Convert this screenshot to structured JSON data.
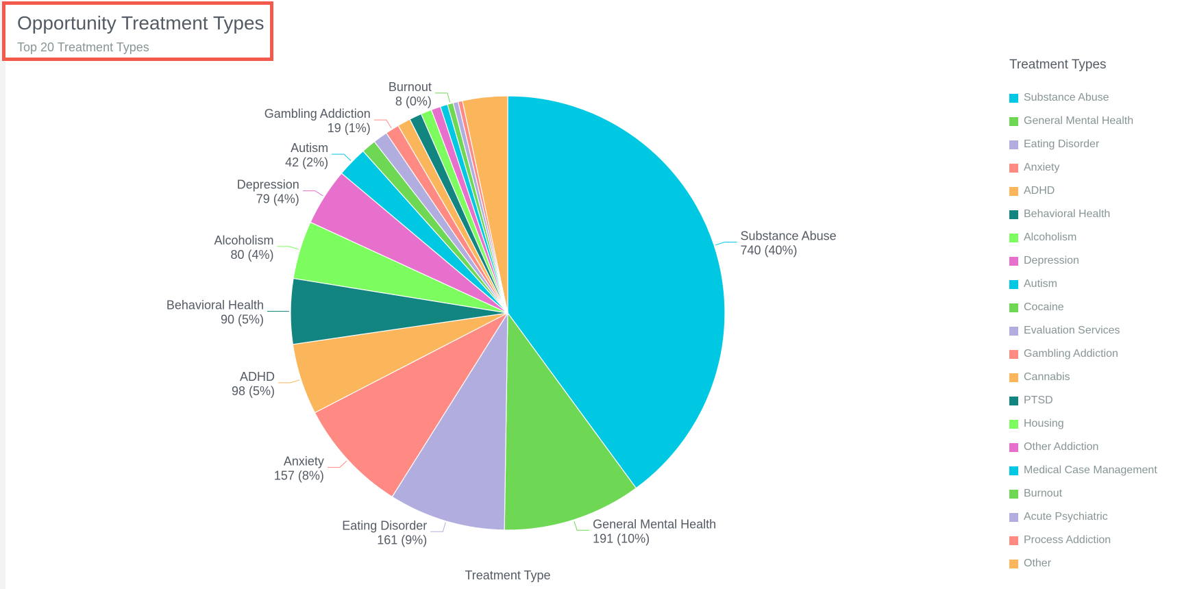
{
  "header": {
    "title": "Opportunity Treatment Types",
    "subtitle": "Top 20 Treatment Types"
  },
  "legend": {
    "title": "Treatment Types"
  },
  "chart_data": {
    "type": "pie",
    "title": "Opportunity Treatment Types",
    "subtitle": "Top 20 Treatment Types",
    "xlabel": "Treatment Type",
    "legend_title": "Treatment Types",
    "legend_position": "right",
    "slices": [
      {
        "name": "Substance Abuse",
        "value": 740,
        "label": "740 (40%)",
        "color": "#00c8e3",
        "show_label": true
      },
      {
        "name": "General Mental Health",
        "value": 191,
        "label": "191 (10%)",
        "color": "#6ed855",
        "show_label": true
      },
      {
        "name": "Eating Disorder",
        "value": 161,
        "label": "161 (9%)",
        "color": "#b1addf",
        "show_label": true
      },
      {
        "name": "Anxiety",
        "value": 157,
        "label": "157 (8%)",
        "color": "#ff8a84",
        "show_label": true
      },
      {
        "name": "ADHD",
        "value": 98,
        "label": "98 (5%)",
        "color": "#fbb55a",
        "show_label": true
      },
      {
        "name": "Behavioral Health",
        "value": 90,
        "label": "90 (5%)",
        "color": "#138580",
        "show_label": true
      },
      {
        "name": "Alcoholism",
        "value": 80,
        "label": "80 (4%)",
        "color": "#7cfc5e",
        "show_label": true
      },
      {
        "name": "Depression",
        "value": 79,
        "label": "79 (4%)",
        "color": "#e770cc",
        "show_label": true
      },
      {
        "name": "Autism",
        "value": 42,
        "label": "42 (2%)",
        "color": "#00c8e3",
        "show_label": true
      },
      {
        "name": "Cocaine",
        "value": 20,
        "label": "",
        "color": "#6ed855",
        "show_label": false
      },
      {
        "name": "Evaluation Services",
        "value": 20,
        "label": "",
        "color": "#b1addf",
        "show_label": false
      },
      {
        "name": "Gambling Addiction",
        "value": 19,
        "label": "19 (1%)",
        "color": "#ff8a84",
        "show_label": true
      },
      {
        "name": "Cannabis",
        "value": 18,
        "label": "",
        "color": "#fbb55a",
        "show_label": false
      },
      {
        "name": "PTSD",
        "value": 17,
        "label": "",
        "color": "#138580",
        "show_label": false
      },
      {
        "name": "Housing",
        "value": 15,
        "label": "",
        "color": "#7cfc5e",
        "show_label": false
      },
      {
        "name": "Other Addiction",
        "value": 13,
        "label": "",
        "color": "#e770cc",
        "show_label": false
      },
      {
        "name": "Medical Case Management",
        "value": 10,
        "label": "",
        "color": "#00c8e3",
        "show_label": false
      },
      {
        "name": "Burnout",
        "value": 8,
        "label": "8 (0%)",
        "color": "#6ed855",
        "show_label": true
      },
      {
        "name": "Acute Psychiatric",
        "value": 7,
        "label": "",
        "color": "#b1addf",
        "show_label": false
      },
      {
        "name": "Process Addiction",
        "value": 6,
        "label": "",
        "color": "#ff8a84",
        "show_label": false
      },
      {
        "name": "Other",
        "value": 62,
        "label": "",
        "color": "#fbb55a",
        "show_label": false
      }
    ]
  }
}
